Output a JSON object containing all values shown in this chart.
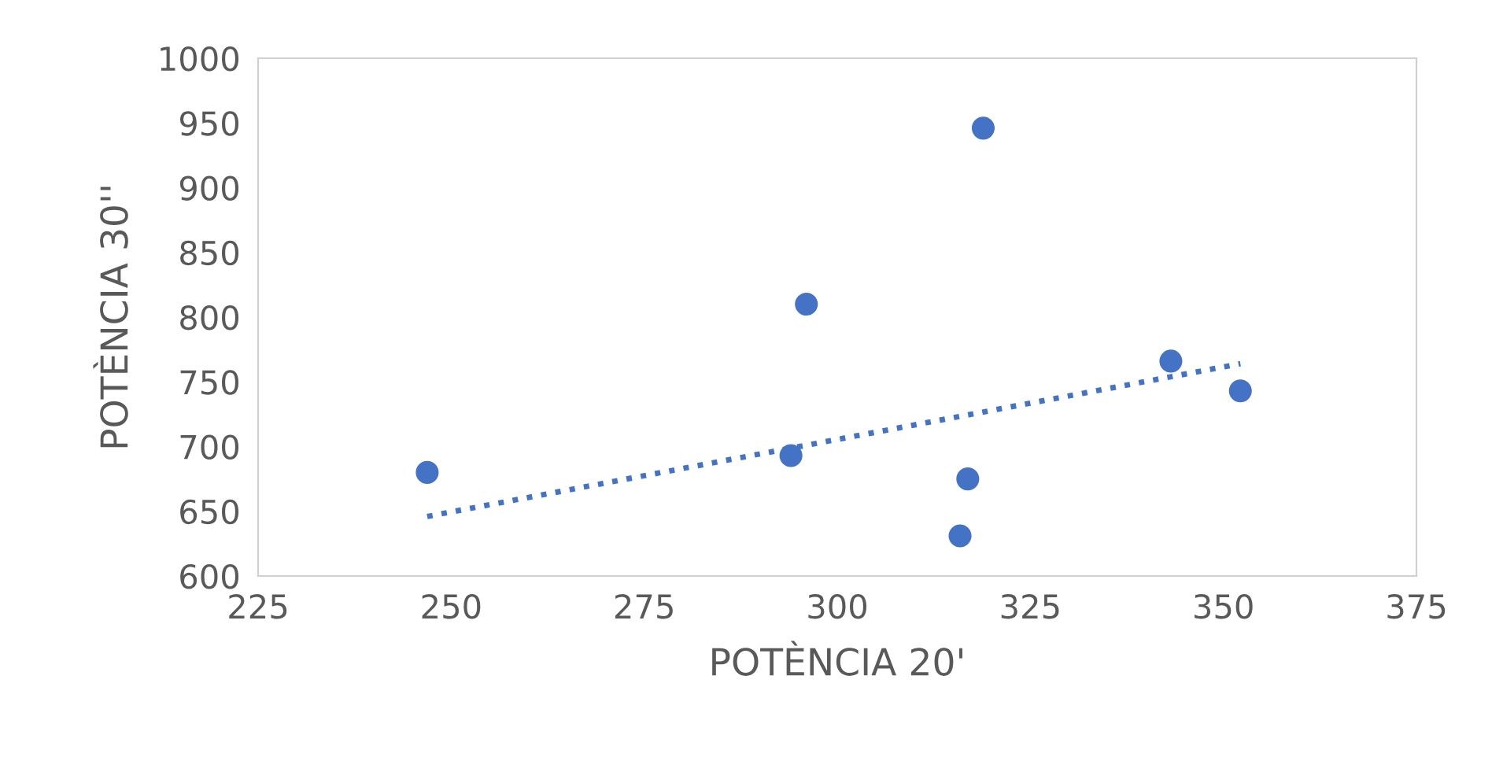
{
  "chart_data": {
    "type": "scatter",
    "xlabel": "POTÈNCIA 20'",
    "ylabel": "POTÈNCIA 30''",
    "xlim": [
      225,
      375
    ],
    "xticks": [
      225,
      250,
      275,
      300,
      325,
      350,
      375
    ],
    "ylim": [
      600,
      1000
    ],
    "yticks": [
      600,
      650,
      700,
      750,
      800,
      850,
      900,
      950,
      1000
    ],
    "grid": false,
    "legend": false,
    "marker": "circle",
    "series": [
      {
        "color": "#4472c4",
        "x": [
          246.9,
          294.0,
          296.0,
          318.9,
          316.9,
          315.9,
          343.2,
          352.2
        ],
        "values": [
          680,
          693,
          810,
          946,
          675,
          631,
          766,
          743
        ]
      },
      {
        "type": "line",
        "color": "#4472c4",
        "line_style": "dotted",
        "marker": "none",
        "x": [
          246.9,
          352.2
        ],
        "values": [
          646,
          764
        ]
      }
    ]
  }
}
